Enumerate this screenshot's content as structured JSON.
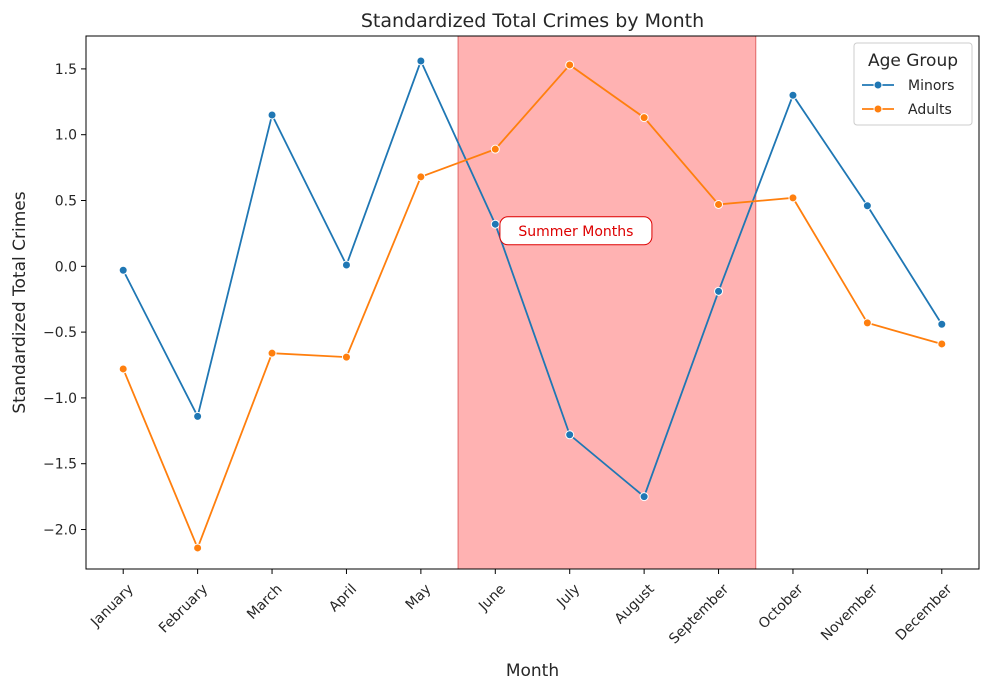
{
  "chart_data": {
    "type": "line",
    "title": "Standardized Total Crimes by Month",
    "xlabel": "Month",
    "ylabel": "Standardized Total Crimes",
    "categories": [
      "January",
      "February",
      "March",
      "April",
      "May",
      "June",
      "July",
      "August",
      "September",
      "October",
      "November",
      "December"
    ],
    "ylim": [
      -2.3,
      1.75
    ],
    "yticks": [
      1.5,
      1.0,
      0.5,
      0.0,
      -0.5,
      -1.0,
      -1.5,
      -2.0
    ],
    "ytick_labels": [
      "1.5",
      "1.0",
      "0.5",
      "0.0",
      "−0.5",
      "−1.0",
      "−1.5",
      "−2.0"
    ],
    "series": [
      {
        "name": "Minors",
        "color": "#1f77b4",
        "values": [
          -0.03,
          -1.14,
          1.15,
          0.01,
          1.56,
          0.32,
          -1.28,
          -1.75,
          -0.19,
          1.3,
          0.46,
          -0.44
        ]
      },
      {
        "name": "Adults",
        "color": "#ff7f0e",
        "values": [
          -0.78,
          -2.14,
          -0.66,
          -0.69,
          0.68,
          0.89,
          1.53,
          1.13,
          0.47,
          0.52,
          -0.43,
          -0.59
        ]
      }
    ],
    "legend": {
      "title": "Age Group",
      "position": "top-right"
    },
    "highlight": {
      "from_category": "May",
      "to_category": "September",
      "label": "Summer Months",
      "color": "#ff7f7f"
    },
    "grid": false
  }
}
